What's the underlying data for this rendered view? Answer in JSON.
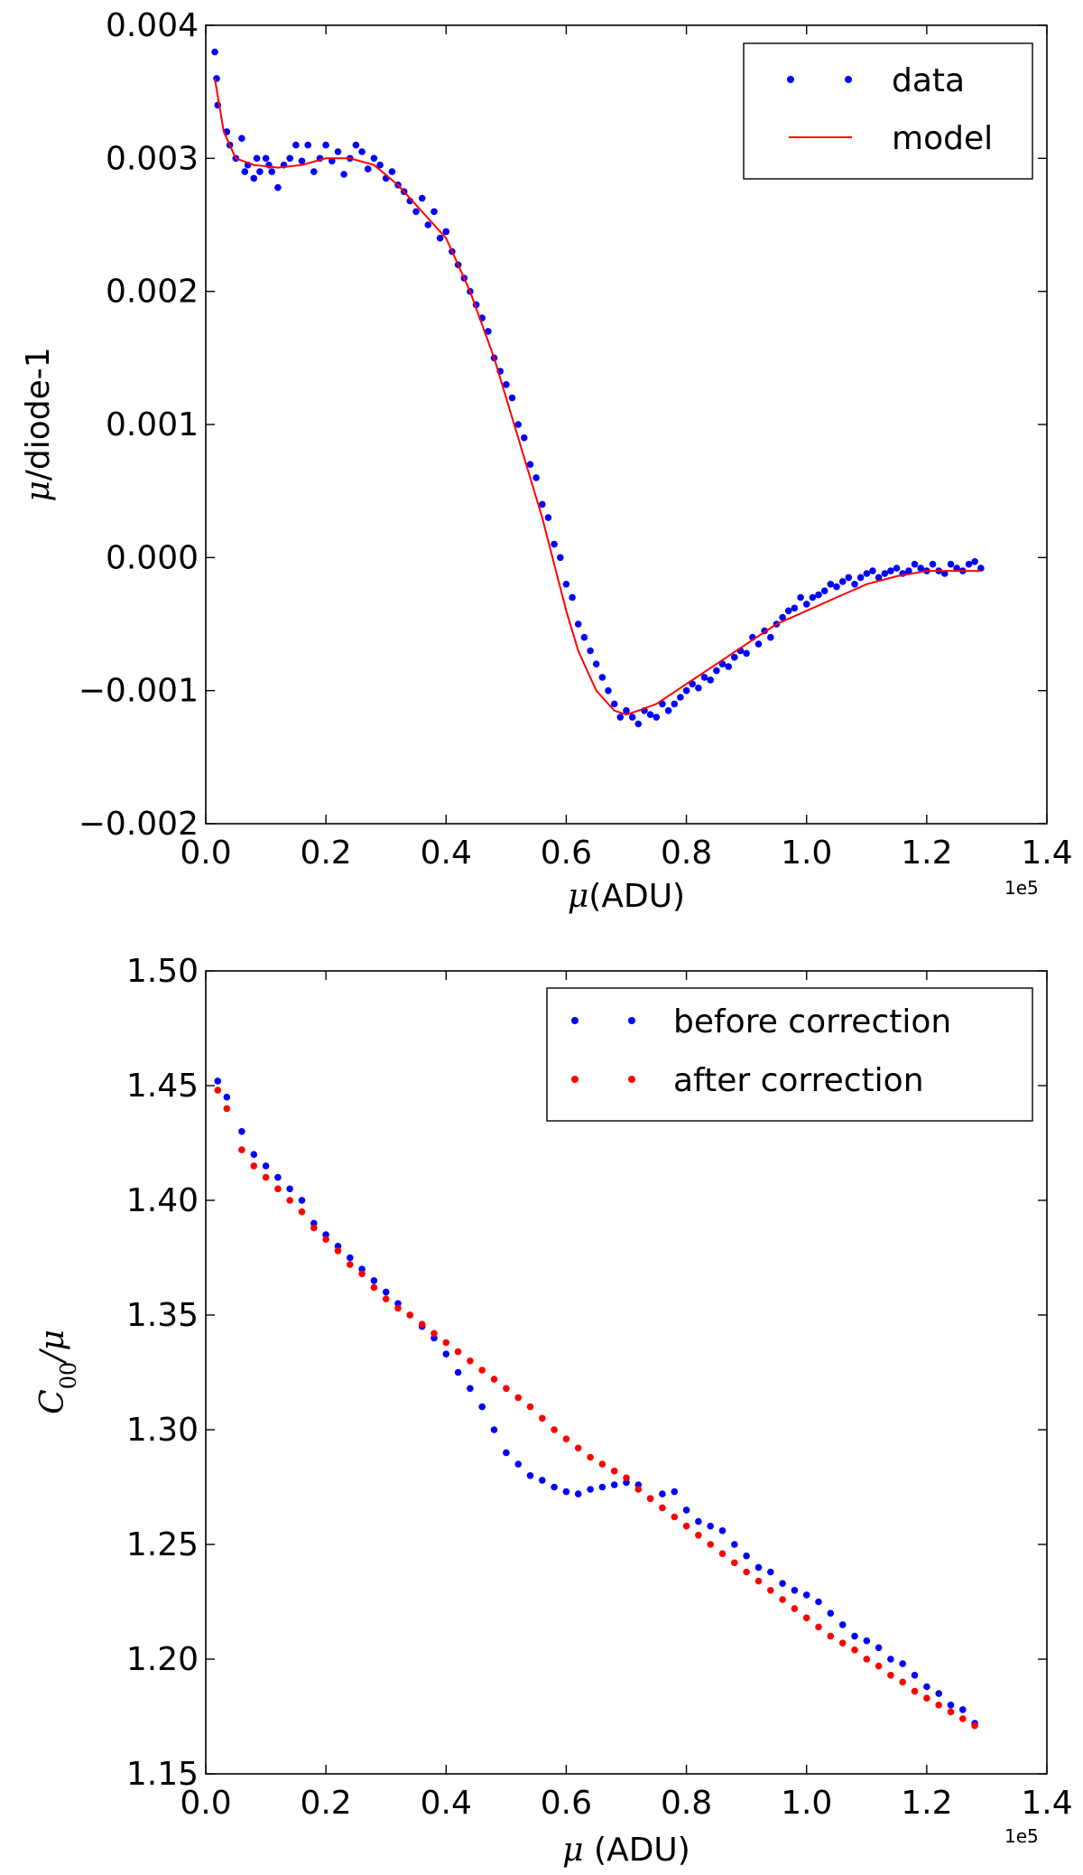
{
  "chart_data": [
    {
      "type": "scatter",
      "xlabel_symbol": "μ",
      "xlabel_rest": "(ADU)",
      "ylabel_symbol": "μ",
      "ylabel_rest": "/diode-1",
      "x_offset_label": "1e5",
      "xlim": [
        0.0,
        1.4
      ],
      "ylim": [
        -0.002,
        0.004
      ],
      "x_ticks": [
        "0.0",
        "0.2",
        "0.4",
        "0.6",
        "0.8",
        "1.0",
        "1.2",
        "1.4"
      ],
      "y_ticks": [
        "0.004",
        "0.003",
        "0.002",
        "0.001",
        "0.000",
        "−0.001",
        "−0.002"
      ],
      "legend_position": "top-right",
      "series": [
        {
          "name": "data",
          "kind": "points",
          "color": "#0000ff",
          "x": [
            0.015,
            0.018,
            0.02,
            0.035,
            0.04,
            0.05,
            0.06,
            0.065,
            0.07,
            0.08,
            0.085,
            0.09,
            0.1,
            0.105,
            0.11,
            0.12,
            0.13,
            0.14,
            0.15,
            0.16,
            0.17,
            0.18,
            0.19,
            0.2,
            0.21,
            0.22,
            0.23,
            0.24,
            0.25,
            0.26,
            0.27,
            0.28,
            0.29,
            0.3,
            0.31,
            0.32,
            0.33,
            0.34,
            0.35,
            0.36,
            0.37,
            0.38,
            0.39,
            0.4,
            0.41,
            0.42,
            0.43,
            0.44,
            0.45,
            0.46,
            0.47,
            0.48,
            0.49,
            0.5,
            0.51,
            0.52,
            0.53,
            0.54,
            0.55,
            0.56,
            0.57,
            0.58,
            0.59,
            0.6,
            0.61,
            0.62,
            0.63,
            0.64,
            0.65,
            0.66,
            0.67,
            0.68,
            0.69,
            0.7,
            0.71,
            0.72,
            0.73,
            0.74,
            0.75,
            0.76,
            0.77,
            0.78,
            0.79,
            0.8,
            0.81,
            0.82,
            0.83,
            0.84,
            0.85,
            0.86,
            0.87,
            0.88,
            0.89,
            0.9,
            0.91,
            0.92,
            0.93,
            0.94,
            0.95,
            0.96,
            0.97,
            0.98,
            0.99,
            1.0,
            1.01,
            1.02,
            1.03,
            1.04,
            1.05,
            1.06,
            1.07,
            1.08,
            1.09,
            1.1,
            1.11,
            1.12,
            1.13,
            1.14,
            1.15,
            1.16,
            1.17,
            1.18,
            1.19,
            1.2,
            1.21,
            1.22,
            1.23,
            1.24,
            1.25,
            1.26,
            1.27,
            1.28,
            1.29
          ],
          "y": [
            0.0038,
            0.0036,
            0.0034,
            0.0032,
            0.0031,
            0.003,
            0.00315,
            0.0029,
            0.00295,
            0.00285,
            0.003,
            0.0029,
            0.003,
            0.00295,
            0.0029,
            0.00278,
            0.00295,
            0.003,
            0.0031,
            0.00298,
            0.0031,
            0.0029,
            0.003,
            0.0031,
            0.00298,
            0.00305,
            0.00288,
            0.003,
            0.0031,
            0.00305,
            0.00292,
            0.003,
            0.00295,
            0.00285,
            0.0029,
            0.0028,
            0.00275,
            0.00268,
            0.0026,
            0.0027,
            0.0025,
            0.0026,
            0.0024,
            0.00245,
            0.0023,
            0.0022,
            0.0021,
            0.002,
            0.0019,
            0.0018,
            0.0017,
            0.0015,
            0.0014,
            0.0013,
            0.0012,
            0.001,
            0.0009,
            0.0007,
            0.0006,
            0.0004,
            0.0003,
            0.0001,
            0.0,
            -0.0002,
            -0.0003,
            -0.0005,
            -0.0006,
            -0.0007,
            -0.0008,
            -0.0009,
            -0.001,
            -0.0011,
            -0.0012,
            -0.00115,
            -0.0012,
            -0.00125,
            -0.00115,
            -0.00118,
            -0.0012,
            -0.0011,
            -0.00115,
            -0.0011,
            -0.00105,
            -0.001,
            -0.00095,
            -0.00098,
            -0.0009,
            -0.00092,
            -0.00085,
            -0.0008,
            -0.00082,
            -0.00075,
            -0.0007,
            -0.00072,
            -0.0006,
            -0.00065,
            -0.00055,
            -0.0006,
            -0.0005,
            -0.00045,
            -0.0004,
            -0.00038,
            -0.0003,
            -0.00035,
            -0.0003,
            -0.00028,
            -0.00025,
            -0.0002,
            -0.00022,
            -0.00018,
            -0.00015,
            -0.0002,
            -0.00015,
            -0.00012,
            -0.0001,
            -0.00015,
            -0.00012,
            -0.0001,
            -8e-05,
            -0.00012,
            -0.0001,
            -5e-05,
            -8e-05,
            -0.0001,
            -5e-05,
            -0.0001,
            -0.00012,
            -5e-05,
            -8e-05,
            -0.0001,
            -5e-05,
            -3e-05,
            -8e-05
          ]
        },
        {
          "name": "model",
          "kind": "line",
          "color": "#ff0000",
          "x": [
            0.015,
            0.03,
            0.05,
            0.08,
            0.12,
            0.16,
            0.2,
            0.24,
            0.28,
            0.32,
            0.36,
            0.4,
            0.44,
            0.48,
            0.52,
            0.56,
            0.6,
            0.62,
            0.65,
            0.68,
            0.7,
            0.72,
            0.75,
            0.8,
            0.85,
            0.9,
            0.95,
            1.0,
            1.05,
            1.1,
            1.15,
            1.2,
            1.25,
            1.29
          ],
          "y": [
            0.0036,
            0.0032,
            0.003,
            0.00295,
            0.00293,
            0.00295,
            0.003,
            0.003,
            0.00295,
            0.0028,
            0.0026,
            0.0024,
            0.002,
            0.0015,
            0.0009,
            0.0003,
            -0.0004,
            -0.0007,
            -0.001,
            -0.00115,
            -0.00118,
            -0.00115,
            -0.0011,
            -0.00095,
            -0.0008,
            -0.00065,
            -0.0005,
            -0.0004,
            -0.0003,
            -0.0002,
            -0.00014,
            -0.0001,
            -0.0001,
            -0.0001
          ]
        }
      ]
    },
    {
      "type": "scatter",
      "xlabel_symbol": "μ",
      "xlabel_rest": " (ADU)",
      "ylabel": "C00/μ",
      "ylabel_main": "C",
      "ylabel_sub": "00",
      "ylabel_tail": "/μ",
      "x_offset_label": "1e5",
      "xlim": [
        0.0,
        1.4
      ],
      "ylim": [
        1.15,
        1.5
      ],
      "x_ticks": [
        "0.0",
        "0.2",
        "0.4",
        "0.6",
        "0.8",
        "1.0",
        "1.2",
        "1.4"
      ],
      "y_ticks": [
        "1.50",
        "1.45",
        "1.40",
        "1.35",
        "1.30",
        "1.25",
        "1.20",
        "1.15"
      ],
      "legend_position": "top-right",
      "series": [
        {
          "name": "before correction",
          "kind": "points",
          "color": "#0000ff",
          "x": [
            0.02,
            0.035,
            0.06,
            0.08,
            0.1,
            0.12,
            0.14,
            0.16,
            0.18,
            0.2,
            0.22,
            0.24,
            0.26,
            0.28,
            0.3,
            0.32,
            0.34,
            0.36,
            0.38,
            0.4,
            0.42,
            0.44,
            0.46,
            0.48,
            0.5,
            0.52,
            0.54,
            0.56,
            0.58,
            0.6,
            0.62,
            0.64,
            0.66,
            0.68,
            0.7,
            0.72,
            0.74,
            0.76,
            0.78,
            0.8,
            0.82,
            0.84,
            0.86,
            0.88,
            0.9,
            0.92,
            0.94,
            0.96,
            0.98,
            1.0,
            1.02,
            1.04,
            1.06,
            1.08,
            1.1,
            1.12,
            1.14,
            1.16,
            1.18,
            1.2,
            1.22,
            1.24,
            1.26,
            1.28
          ],
          "y": [
            1.452,
            1.445,
            1.43,
            1.42,
            1.415,
            1.41,
            1.405,
            1.4,
            1.39,
            1.385,
            1.38,
            1.375,
            1.37,
            1.365,
            1.36,
            1.355,
            1.35,
            1.345,
            1.34,
            1.333,
            1.325,
            1.318,
            1.31,
            1.3,
            1.29,
            1.285,
            1.28,
            1.278,
            1.275,
            1.273,
            1.272,
            1.274,
            1.275,
            1.276,
            1.277,
            1.276,
            1.27,
            1.272,
            1.273,
            1.265,
            1.26,
            1.258,
            1.256,
            1.25,
            1.245,
            1.24,
            1.238,
            1.233,
            1.23,
            1.228,
            1.225,
            1.22,
            1.215,
            1.21,
            1.208,
            1.205,
            1.2,
            1.198,
            1.193,
            1.188,
            1.185,
            1.18,
            1.178,
            1.172
          ]
        },
        {
          "name": "after correction",
          "kind": "points",
          "color": "#ff0000",
          "x": [
            0.02,
            0.035,
            0.06,
            0.08,
            0.1,
            0.12,
            0.14,
            0.16,
            0.18,
            0.2,
            0.22,
            0.24,
            0.26,
            0.28,
            0.3,
            0.32,
            0.34,
            0.36,
            0.38,
            0.4,
            0.42,
            0.44,
            0.46,
            0.48,
            0.5,
            0.52,
            0.54,
            0.56,
            0.58,
            0.6,
            0.62,
            0.64,
            0.66,
            0.68,
            0.7,
            0.72,
            0.74,
            0.76,
            0.78,
            0.8,
            0.82,
            0.84,
            0.86,
            0.88,
            0.9,
            0.92,
            0.94,
            0.96,
            0.98,
            1.0,
            1.02,
            1.04,
            1.06,
            1.08,
            1.1,
            1.12,
            1.14,
            1.16,
            1.18,
            1.2,
            1.22,
            1.24,
            1.26,
            1.28
          ],
          "y": [
            1.448,
            1.44,
            1.422,
            1.415,
            1.41,
            1.405,
            1.4,
            1.395,
            1.388,
            1.383,
            1.378,
            1.372,
            1.368,
            1.362,
            1.357,
            1.353,
            1.35,
            1.346,
            1.342,
            1.338,
            1.334,
            1.33,
            1.326,
            1.322,
            1.318,
            1.314,
            1.31,
            1.305,
            1.3,
            1.296,
            1.292,
            1.288,
            1.285,
            1.282,
            1.279,
            1.274,
            1.27,
            1.266,
            1.262,
            1.258,
            1.254,
            1.25,
            1.246,
            1.242,
            1.238,
            1.234,
            1.23,
            1.226,
            1.222,
            1.218,
            1.214,
            1.21,
            1.207,
            1.204,
            1.2,
            1.197,
            1.193,
            1.19,
            1.186,
            1.183,
            1.18,
            1.177,
            1.174,
            1.171
          ]
        }
      ]
    }
  ]
}
